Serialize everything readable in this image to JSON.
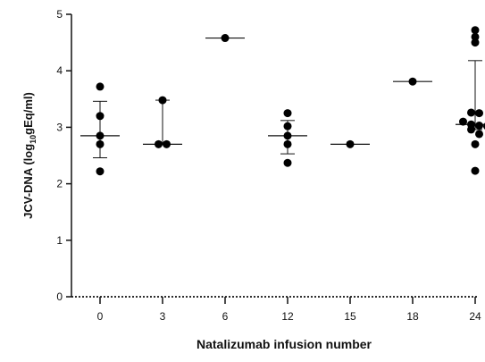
{
  "chart_data": {
    "type": "scatter",
    "title": "",
    "xlabel": "Natalizumab infusion number",
    "ylabel": {
      "prefix": "JCV-DNA (log",
      "subscript": "10",
      "suffix": "gEq/ml)"
    },
    "ylim": [
      0,
      5
    ],
    "yticks": [
      0,
      1,
      2,
      3,
      4,
      5
    ],
    "categories": [
      "0",
      "3",
      "6",
      "12",
      "15",
      "18",
      "24"
    ],
    "points": [
      [
        3.72,
        3.2,
        2.85,
        2.7,
        2.22
      ],
      [
        3.48,
        2.7,
        2.7
      ],
      [
        4.58
      ],
      [
        3.25,
        3.02,
        2.85,
        2.7,
        2.37
      ],
      [
        2.7
      ],
      [
        3.81
      ],
      [
        4.72,
        4.6,
        4.5,
        3.26,
        3.25,
        3.1,
        3.05,
        3.03,
        3.02,
        2.96,
        2.88,
        2.7,
        2.23
      ]
    ],
    "medians": [
      2.85,
      2.7,
      4.58,
      2.85,
      2.7,
      3.81,
      3.05
    ],
    "whiskers": [
      [
        2.46,
        3.46
      ],
      [
        2.7,
        3.48
      ],
      null,
      [
        2.53,
        3.12
      ],
      null,
      null,
      [
        2.96,
        4.18
      ]
    ],
    "zero_baseline": "dotted",
    "grid": false,
    "colors": {
      "points": "#000000",
      "axis": "#111111"
    }
  }
}
